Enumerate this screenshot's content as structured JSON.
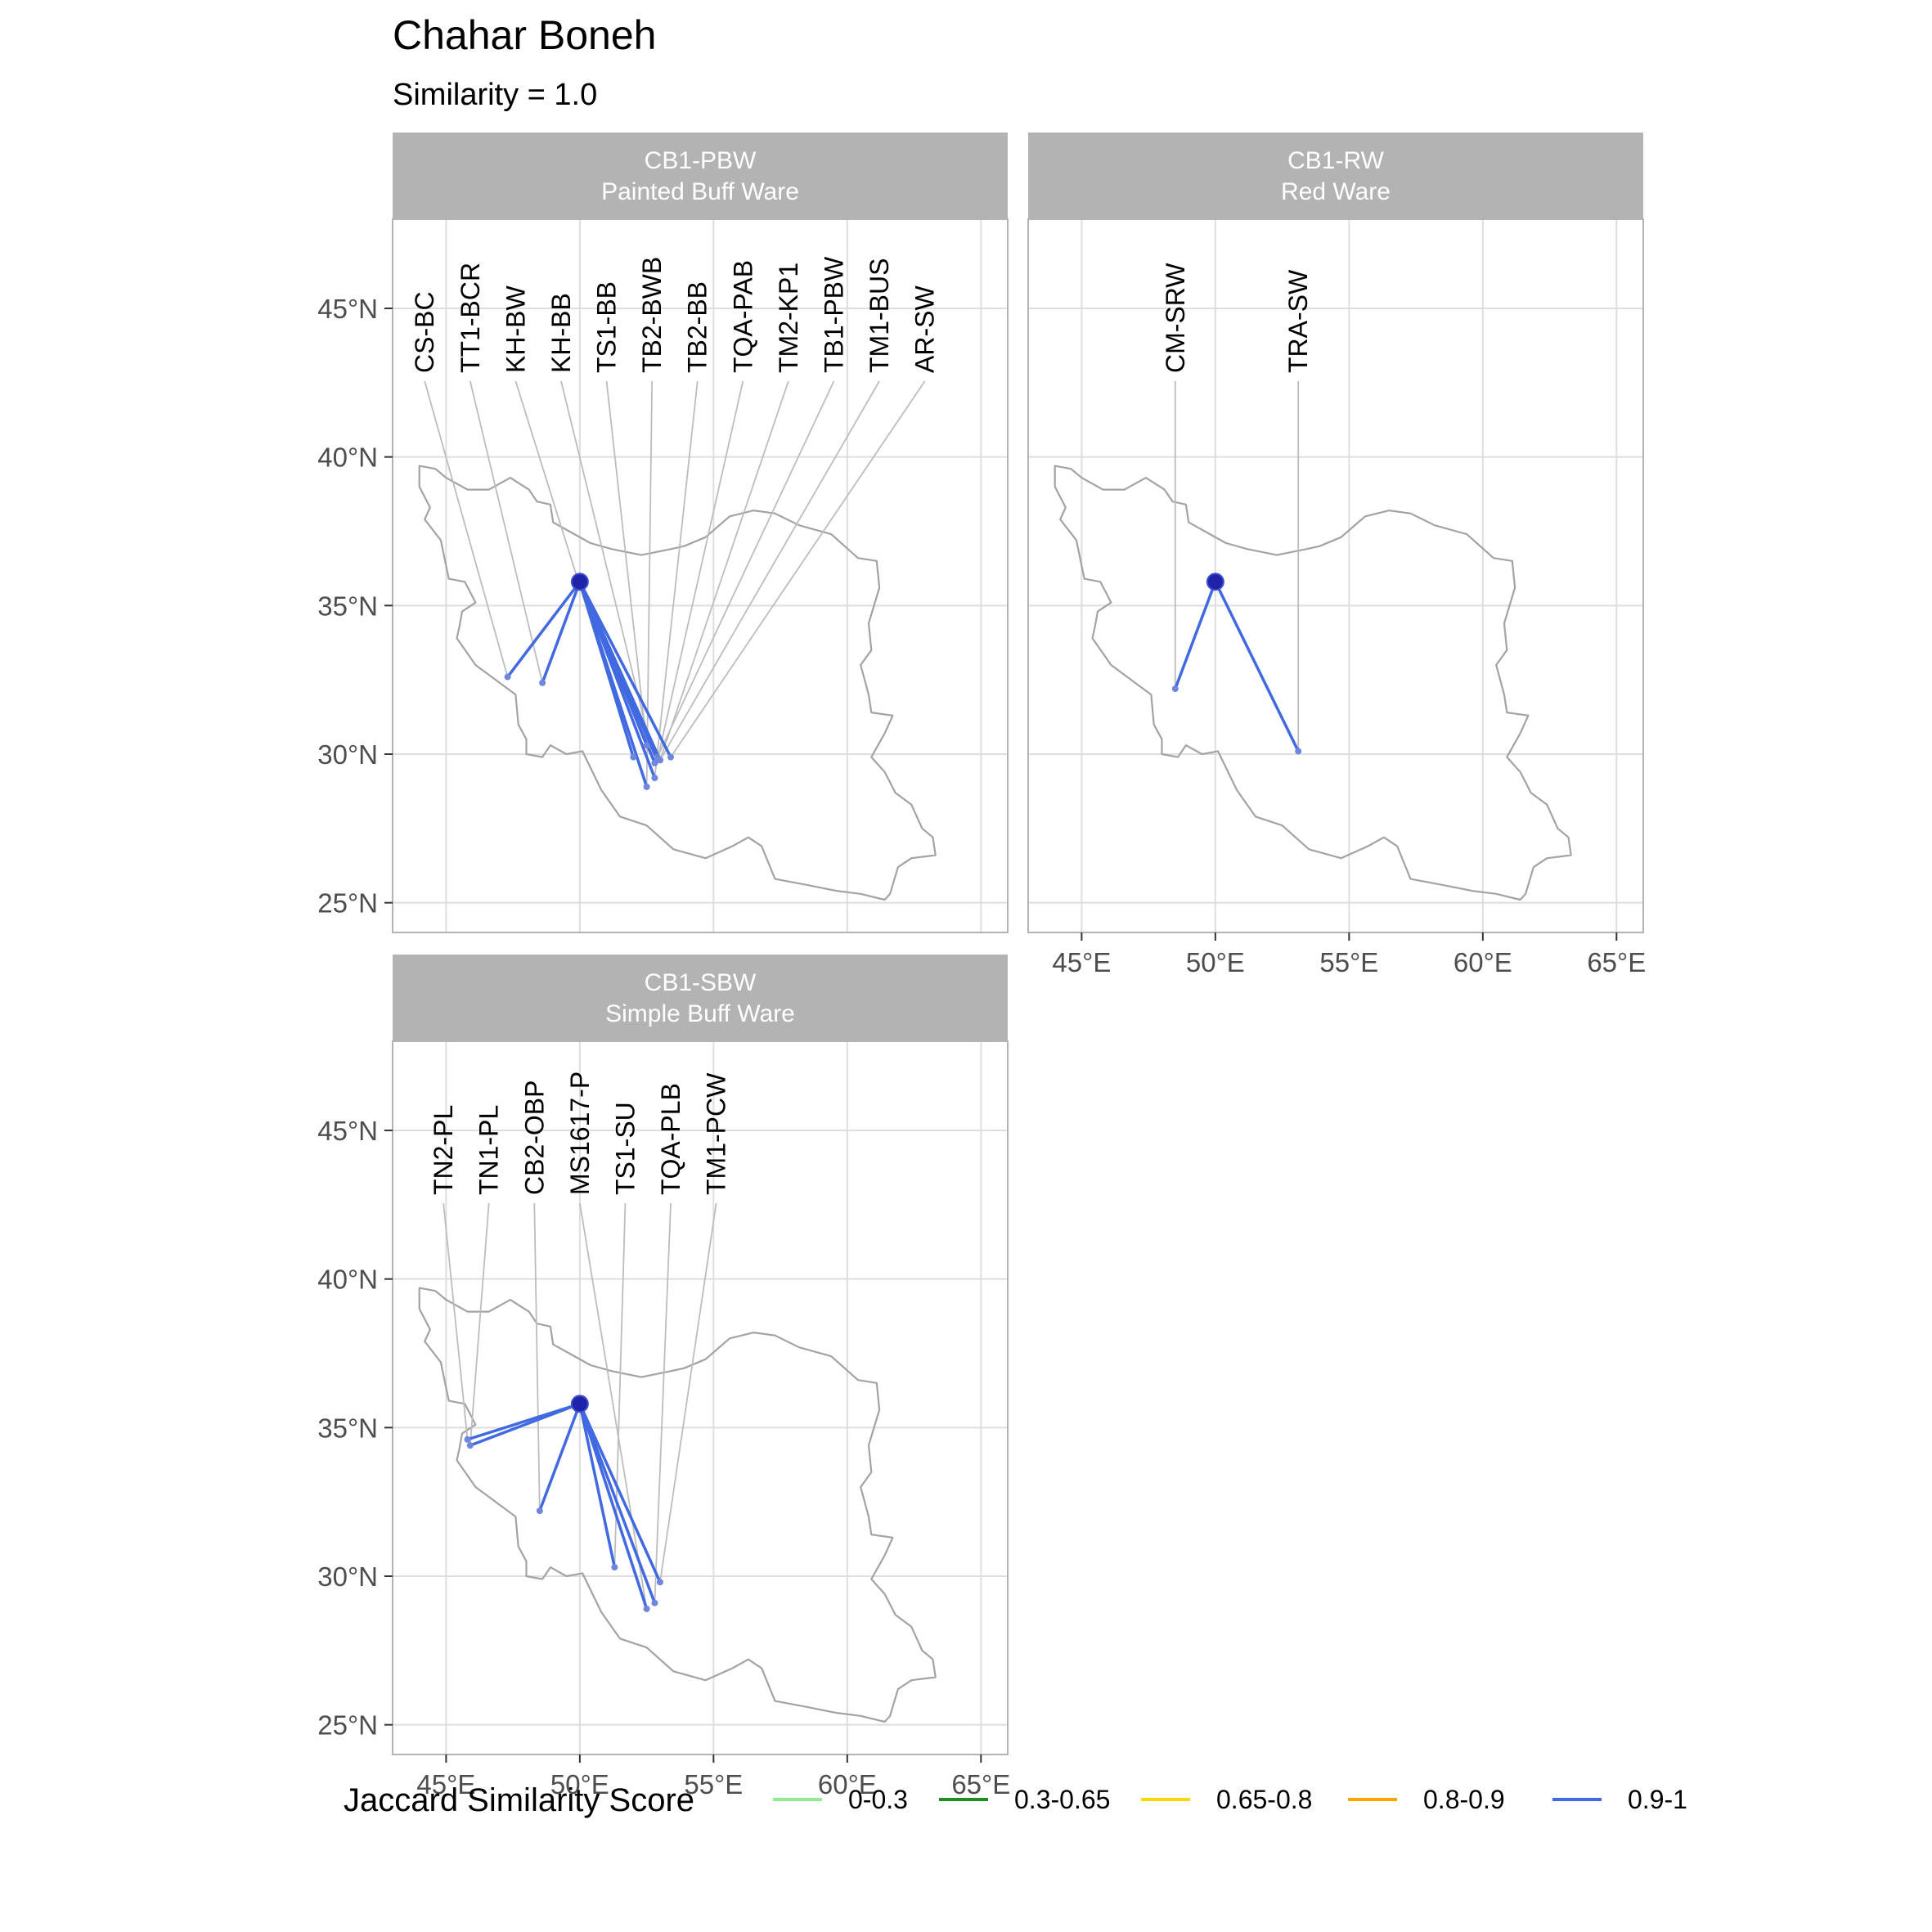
{
  "title": "Chahar Boneh",
  "subtitle": "Similarity = 1.0",
  "colors": {
    "grid": "#dedede",
    "panel_border": "#b3b3b3",
    "strip_bg": "#b3b3b3",
    "country_outline": "#a3a3a3",
    "leader_line": "#bdbdbd",
    "origin_point": "#1f23a8"
  },
  "axes": {
    "x_ticks": [
      "45°E",
      "50°E",
      "55°E",
      "60°E",
      "65°E"
    ],
    "x_values": [
      45,
      50,
      55,
      60,
      65
    ],
    "y_ticks": [
      "45°N",
      "40°N",
      "35°N",
      "30°N",
      "25°N"
    ],
    "y_values": [
      45,
      40,
      35,
      30,
      25
    ],
    "xlim": [
      43,
      66
    ],
    "ylim": [
      24,
      48
    ]
  },
  "origin": {
    "lon": 50.0,
    "lat": 35.8
  },
  "legend": {
    "title": "Jaccard Similarity Score",
    "placement": "bottom",
    "items": [
      {
        "label": "0-0.3",
        "color": "#90ee90"
      },
      {
        "label": "0.3-0.65",
        "color": "#228b22"
      },
      {
        "label": "0.65-0.8",
        "color": "#ffd700"
      },
      {
        "label": "0.8-0.9",
        "color": "#ffa500"
      },
      {
        "label": "0.9-1",
        "color": "#4169e1"
      }
    ]
  },
  "chart_data": {
    "type": "map",
    "panels": [
      {
        "strip_line1": "CB1-PBW",
        "strip_line2": "Painted Buff Ware",
        "show_x_axis": false,
        "show_y_axis": true,
        "sites": [
          {
            "label": "CS-BC",
            "lon": 47.3,
            "lat": 32.6,
            "label_lon": 44.2,
            "score": "0.9-1"
          },
          {
            "label": "TT1-BCR",
            "lon": 48.6,
            "lat": 32.4,
            "label_lon": 45.9,
            "score": "0.9-1"
          },
          {
            "label": "KH-BW",
            "lon": 52.0,
            "lat": 29.9,
            "label_lon": 47.6,
            "score": "0.9-1"
          },
          {
            "label": "KH-BB",
            "lon": 52.8,
            "lat": 29.7,
            "label_lon": 49.3,
            "score": "0.9-1"
          },
          {
            "label": "TS1-BB",
            "lon": 52.5,
            "lat": 30.3,
            "label_lon": 51.0,
            "score": "0.9-1"
          },
          {
            "label": "TB2-BWB",
            "lon": 52.5,
            "lat": 28.9,
            "label_lon": 52.7,
            "score": "0.9-1"
          },
          {
            "label": "TB2-BB",
            "lon": 52.8,
            "lat": 29.2,
            "label_lon": 54.4,
            "score": "0.9-1"
          },
          {
            "label": "TQA-PAB",
            "lon": 52.9,
            "lat": 29.8,
            "label_lon": 56.1,
            "score": "0.9-1"
          },
          {
            "label": "TM2-KP1",
            "lon": 53.0,
            "lat": 29.8,
            "label_lon": 57.8,
            "score": "0.9-1"
          },
          {
            "label": "TB1-PBW",
            "lon": 52.9,
            "lat": 29.9,
            "label_lon": 59.5,
            "score": "0.9-1"
          },
          {
            "label": "TM1-BUS",
            "lon": 53.0,
            "lat": 29.8,
            "label_lon": 61.2,
            "score": "0.9-1"
          },
          {
            "label": "AR-SW",
            "lon": 53.4,
            "lat": 29.9,
            "label_lon": 62.9,
            "score": "0.9-1"
          }
        ]
      },
      {
        "strip_line1": "CB1-RW",
        "strip_line2": "Red Ware",
        "show_x_axis": true,
        "show_y_axis": false,
        "sites": [
          {
            "label": "CM-SRW",
            "lon": 48.5,
            "lat": 32.2,
            "label_lon": 48.5,
            "score": "0.9-1"
          },
          {
            "label": "TRA-SW",
            "lon": 53.1,
            "lat": 30.1,
            "label_lon": 53.1,
            "score": "0.9-1"
          }
        ]
      },
      {
        "strip_line1": "CB1-SBW",
        "strip_line2": "Simple Buff Ware",
        "show_x_axis": true,
        "show_y_axis": true,
        "sites": [
          {
            "label": "TN2-PL",
            "lon": 45.8,
            "lat": 34.6,
            "label_lon": 44.9,
            "score": "0.9-1"
          },
          {
            "label": "TN1-PL",
            "lon": 45.9,
            "lat": 34.4,
            "label_lon": 46.6,
            "score": "0.9-1"
          },
          {
            "label": "CB2-OBP",
            "lon": 48.5,
            "lat": 32.2,
            "label_lon": 48.3,
            "score": "0.9-1"
          },
          {
            "label": "MS1617-P",
            "lon": 52.5,
            "lat": 28.9,
            "label_lon": 50.0,
            "score": "0.9-1"
          },
          {
            "label": "TS1-SU",
            "lon": 51.3,
            "lat": 30.3,
            "label_lon": 51.7,
            "score": "0.9-1"
          },
          {
            "label": "TQA-PLB",
            "lon": 52.8,
            "lat": 29.1,
            "label_lon": 53.4,
            "score": "0.9-1"
          },
          {
            "label": "TM1-PCW",
            "lon": 53.0,
            "lat": 29.8,
            "label_lon": 55.1,
            "score": "0.9-1"
          }
        ]
      }
    ]
  }
}
